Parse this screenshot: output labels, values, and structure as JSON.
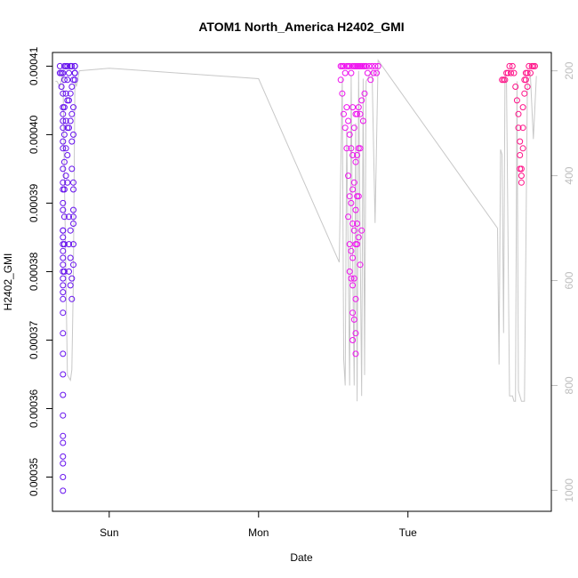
{
  "chart_data": {
    "type": "scatter",
    "title": "ATOM1 North_America H2402_GMI",
    "xlabel": "Date",
    "ylabel": "H2402_GMI",
    "x_ticks": [
      {
        "label": "Sun",
        "value": 0
      },
      {
        "label": "Mon",
        "value": 1
      },
      {
        "label": "Tue",
        "value": 2
      }
    ],
    "xlim": [
      -0.38,
      2.96
    ],
    "ylim": [
      0.000345,
      0.000412
    ],
    "y_ticks": [
      {
        "label": "0.00035",
        "value": 0.00035
      },
      {
        "label": "0.00036",
        "value": 0.00036
      },
      {
        "label": "0.00037",
        "value": 0.00037
      },
      {
        "label": "0.00038",
        "value": 0.00038
      },
      {
        "label": "0.00039",
        "value": 0.00039
      },
      {
        "label": "0.00040",
        "value": 0.0004
      },
      {
        "label": "0.00041",
        "value": 0.00041
      }
    ],
    "y2lim": [
      1040,
      165
    ],
    "y2_ticks": [
      {
        "label": "200",
        "value": 200
      },
      {
        "label": "400",
        "value": 400
      },
      {
        "label": "600",
        "value": 600
      },
      {
        "label": "800",
        "value": 800
      },
      {
        "label": "1000",
        "value": 1000
      }
    ],
    "colors": {
      "series_start": "#6611ee",
      "series_mid": "#ee11ee",
      "series_end": "#ff1188",
      "pressure_line": "#c8c8c8"
    },
    "series": [
      {
        "marker": "open-circle",
        "color": "#6611ee",
        "x": [
          -0.33,
          -0.33,
          -0.32,
          -0.32,
          -0.31,
          -0.31,
          -0.31,
          -0.31,
          -0.31,
          -0.31,
          -0.31,
          -0.31,
          -0.31,
          -0.31,
          -0.31,
          -0.31,
          -0.31,
          -0.31,
          -0.31,
          -0.31,
          -0.31,
          -0.31,
          -0.31,
          -0.31,
          -0.31,
          -0.31,
          -0.31,
          -0.31,
          -0.31,
          -0.31,
          -0.31,
          -0.31,
          -0.31,
          -0.31,
          -0.31,
          -0.31,
          -0.31,
          -0.31,
          -0.31,
          -0.31,
          -0.31,
          -0.3,
          -0.3,
          -0.3,
          -0.3,
          -0.3,
          -0.3,
          -0.3,
          -0.3,
          -0.3,
          -0.29,
          -0.29,
          -0.29,
          -0.29,
          -0.29,
          -0.28,
          -0.28,
          -0.28,
          -0.28,
          -0.28,
          -0.28,
          -0.27,
          -0.27,
          -0.27,
          -0.27,
          -0.27,
          -0.27,
          -0.26,
          -0.26,
          -0.26,
          -0.26,
          -0.26,
          -0.26,
          -0.26,
          -0.25,
          -0.25,
          -0.25,
          -0.25,
          -0.25,
          -0.25,
          -0.25,
          -0.24,
          -0.24,
          -0.24,
          -0.24,
          -0.24,
          -0.24,
          -0.24,
          -0.24,
          -0.24,
          -0.24,
          -0.23,
          -0.23,
          -0.23,
          -0.23,
          -0.23,
          -0.23
        ],
        "y": [
          0.00041,
          0.000409,
          0.000409,
          0.000407,
          0.000404,
          0.000401,
          0.000398,
          0.000395,
          0.000392,
          0.000389,
          0.000386,
          0.000383,
          0.00038,
          0.000377,
          0.000374,
          0.000371,
          0.000368,
          0.000365,
          0.000362,
          0.000359,
          0.000356,
          0.000353,
          0.00035,
          0.000348,
          0.000352,
          0.000355,
          0.000376,
          0.000379,
          0.000382,
          0.000385,
          0.000378,
          0.000381,
          0.000384,
          0.000386,
          0.000403,
          0.000406,
          0.000409,
          0.000399,
          0.000402,
          0.00039,
          0.000393,
          0.00041,
          0.000408,
          0.000404,
          0.0004,
          0.000396,
          0.000392,
          0.000388,
          0.000384,
          0.00038,
          0.00041,
          0.000406,
          0.000402,
          0.000398,
          0.000394,
          0.00041,
          0.000408,
          0.000405,
          0.000401,
          0.000397,
          0.000393,
          0.000409,
          0.000405,
          0.000401,
          0.000388,
          0.000384,
          0.00038,
          0.00041,
          0.000406,
          0.000402,
          0.000386,
          0.000382,
          0.000378,
          0.00041,
          0.000407,
          0.000403,
          0.000399,
          0.000395,
          0.000379,
          0.000376,
          0.00041,
          0.000408,
          0.000404,
          0.0004,
          0.000393,
          0.000392,
          0.000389,
          0.000388,
          0.000387,
          0.000384,
          0.000381,
          0.00041,
          0.000409,
          0.000409,
          0.000408,
          0.00041,
          0.000409
        ]
      },
      {
        "marker": "open-circle",
        "color": "#ee11ee",
        "x": [
          1.55,
          1.55,
          1.56,
          1.56,
          1.57,
          1.57,
          1.58,
          1.58,
          1.59,
          1.59,
          1.59,
          1.6,
          1.6,
          1.6,
          1.6,
          1.61,
          1.61,
          1.61,
          1.61,
          1.61,
          1.62,
          1.62,
          1.62,
          1.62,
          1.62,
          1.63,
          1.63,
          1.63,
          1.63,
          1.63,
          1.63,
          1.63,
          1.63,
          1.63,
          1.64,
          1.64,
          1.64,
          1.64,
          1.64,
          1.64,
          1.65,
          1.65,
          1.65,
          1.65,
          1.65,
          1.65,
          1.65,
          1.65,
          1.66,
          1.66,
          1.66,
          1.66,
          1.66,
          1.66,
          1.67,
          1.67,
          1.67,
          1.67,
          1.67,
          1.68,
          1.68,
          1.68,
          1.68,
          1.69,
          1.69,
          1.69,
          1.7,
          1.7,
          1.71,
          1.71,
          1.72,
          1.73,
          1.74,
          1.75,
          1.76,
          1.77,
          1.78,
          1.79,
          1.8
        ],
        "y": [
          0.00041,
          0.000408,
          0.00041,
          0.000406,
          0.00041,
          0.000403,
          0.000409,
          0.000401,
          0.00041,
          0.000404,
          0.000398,
          0.00041,
          0.000402,
          0.000394,
          0.000388,
          0.00041,
          0.0004,
          0.000391,
          0.000384,
          0.00038,
          0.000409,
          0.000398,
          0.00039,
          0.000383,
          0.000379,
          0.00041,
          0.000404,
          0.000397,
          0.000392,
          0.000387,
          0.000382,
          0.000378,
          0.000374,
          0.00037,
          0.00041,
          0.000401,
          0.000393,
          0.000386,
          0.000379,
          0.000373,
          0.00041,
          0.000403,
          0.000396,
          0.000389,
          0.000384,
          0.000376,
          0.000371,
          0.000368,
          0.00041,
          0.000403,
          0.000397,
          0.000391,
          0.000387,
          0.000384,
          0.00041,
          0.000404,
          0.000398,
          0.000391,
          0.000385,
          0.00041,
          0.000403,
          0.000398,
          0.000381,
          0.00041,
          0.000405,
          0.000386,
          0.00041,
          0.000402,
          0.00041,
          0.000406,
          0.00041,
          0.000409,
          0.00041,
          0.000408,
          0.00041,
          0.000409,
          0.00041,
          0.000409,
          0.00041
        ]
      },
      {
        "marker": "open-circle",
        "color": "#ff1188",
        "x": [
          2.63,
          2.64,
          2.65,
          2.66,
          2.67,
          2.68,
          2.69,
          2.7,
          2.71,
          2.72,
          2.73,
          2.74,
          2.74,
          2.75,
          2.75,
          2.75,
          2.76,
          2.76,
          2.76,
          2.77,
          2.77,
          2.77,
          2.78,
          2.78,
          2.79,
          2.79,
          2.8,
          2.8,
          2.81,
          2.82,
          2.83,
          2.84,
          2.85
        ],
        "y": [
          0.000408,
          0.000408,
          0.000408,
          0.000409,
          0.000409,
          0.00041,
          0.000409,
          0.00041,
          0.000409,
          0.000407,
          0.000405,
          0.000403,
          0.000401,
          0.000399,
          0.000397,
          0.000395,
          0.000394,
          0.000393,
          0.000395,
          0.000398,
          0.000401,
          0.000404,
          0.000406,
          0.000408,
          0.000409,
          0.000408,
          0.000407,
          0.000409,
          0.00041,
          0.000409,
          0.00041,
          0.00041,
          0.00041
        ]
      }
    ],
    "pressure_line": {
      "color": "#c8c8c8",
      "x": [
        -0.36,
        -0.35,
        -0.34,
        -0.33,
        -0.32,
        -0.31,
        -0.3,
        -0.28,
        -0.26,
        -0.25,
        -0.24,
        -0.23,
        -0.22,
        -0.21,
        -0.2,
        0.0,
        1.0,
        1.54,
        1.56,
        1.57,
        1.58,
        1.59,
        1.61,
        1.62,
        1.63,
        1.64,
        1.65,
        1.66,
        1.67,
        1.68,
        1.69,
        1.7,
        1.71,
        1.72,
        1.74,
        1.76,
        1.78,
        1.8,
        2.6,
        2.61,
        2.62,
        2.63,
        2.64,
        2.65,
        2.66,
        2.68,
        2.7,
        2.71,
        2.72,
        2.73,
        2.74,
        2.76,
        2.78,
        2.8,
        2.82,
        2.84,
        2.86
      ],
      "y": [
        220,
        220,
        225,
        230,
        215,
        205,
        400,
        780,
        790,
        770,
        600,
        220,
        230,
        215,
        200,
        195,
        215,
        565,
        215,
        750,
        800,
        310,
        800,
        210,
        560,
        800,
        300,
        830,
        200,
        520,
        820,
        215,
        780,
        220,
        210,
        200,
        490,
        180,
        500,
        760,
        350,
        360,
        700,
        210,
        220,
        820,
        820,
        830,
        830,
        220,
        810,
        830,
        830,
        220,
        210,
        330,
        210
      ]
    }
  }
}
